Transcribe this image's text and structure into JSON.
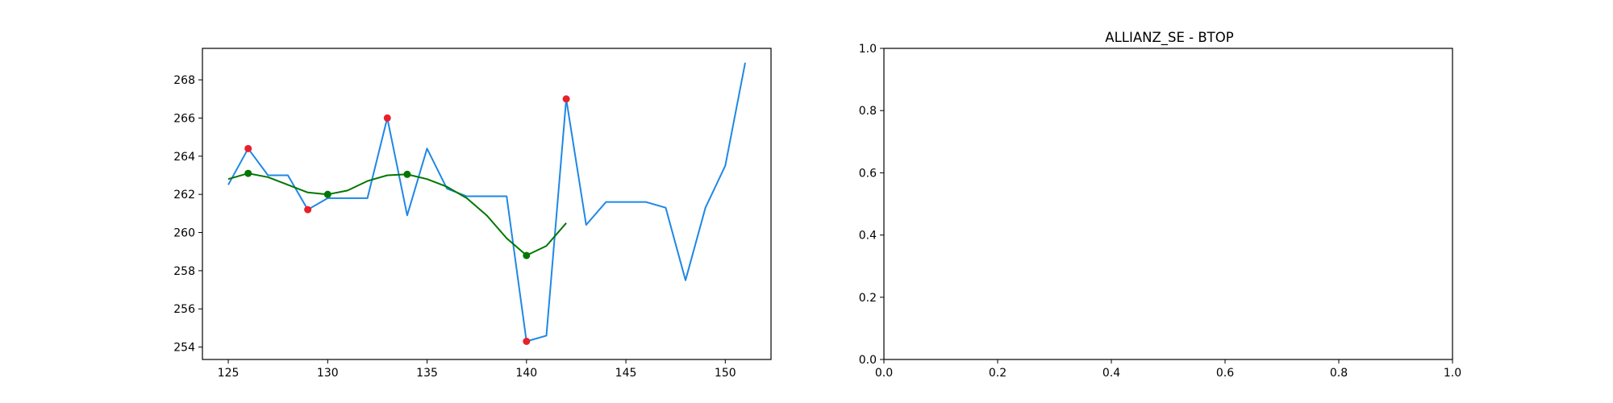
{
  "chart_data": [
    {
      "type": "line",
      "title": "",
      "xlabel": "",
      "ylabel": "",
      "xlim": [
        123.7,
        152.3
      ],
      "ylim": [
        253.35,
        269.65
      ],
      "grid": false,
      "x_ticks": [
        125,
        130,
        135,
        140,
        145,
        150
      ],
      "y_ticks": [
        254,
        256,
        258,
        260,
        262,
        264,
        266,
        268
      ],
      "series": [
        {
          "type": "line",
          "color": "#1e88e5",
          "x": [
            125,
            126,
            127,
            128,
            129,
            130,
            131,
            132,
            133,
            134,
            135,
            136,
            137,
            138,
            139,
            140,
            141,
            142,
            143,
            144,
            145,
            146,
            147,
            148,
            149,
            150,
            151
          ],
          "y": [
            262.5,
            264.4,
            263.0,
            263.0,
            261.2,
            261.8,
            261.8,
            261.8,
            266.0,
            260.9,
            264.4,
            262.3,
            261.9,
            261.9,
            261.9,
            254.3,
            254.6,
            267.0,
            260.4,
            261.6,
            261.6,
            261.6,
            261.3,
            257.5,
            261.3,
            263.5,
            268.9
          ]
        },
        {
          "type": "line",
          "color": "#007700",
          "x": [
            125,
            126,
            127,
            128,
            129,
            130,
            131,
            132,
            133,
            134,
            135,
            136,
            137,
            138,
            139,
            140,
            141,
            142
          ],
          "y": [
            262.8,
            263.1,
            262.9,
            262.5,
            262.1,
            262.0,
            262.2,
            262.7,
            263.0,
            263.05,
            262.8,
            262.4,
            261.8,
            260.9,
            259.7,
            258.8,
            259.3,
            260.5
          ]
        },
        {
          "type": "scatter",
          "color": "#e8202a",
          "x": [
            126,
            129,
            133,
            140,
            142
          ],
          "y": [
            264.4,
            261.2,
            266.0,
            254.3,
            267.0
          ]
        },
        {
          "type": "scatter",
          "color": "#007700",
          "x": [
            126,
            130,
            134,
            140
          ],
          "y": [
            263.1,
            262.0,
            263.05,
            258.8
          ]
        }
      ]
    },
    {
      "type": "line",
      "title": "ALLIANZ_SE - BTOP",
      "xlabel": "",
      "ylabel": "",
      "xlim": [
        0,
        1
      ],
      "ylim": [
        0,
        1
      ],
      "grid": false,
      "x_ticks": [
        "0.0",
        "0.2",
        "0.4",
        "0.6",
        "0.8",
        "1.0"
      ],
      "y_ticks": [
        "0.0",
        "0.2",
        "0.4",
        "0.6",
        "0.8",
        "1.0"
      ],
      "series": []
    }
  ]
}
